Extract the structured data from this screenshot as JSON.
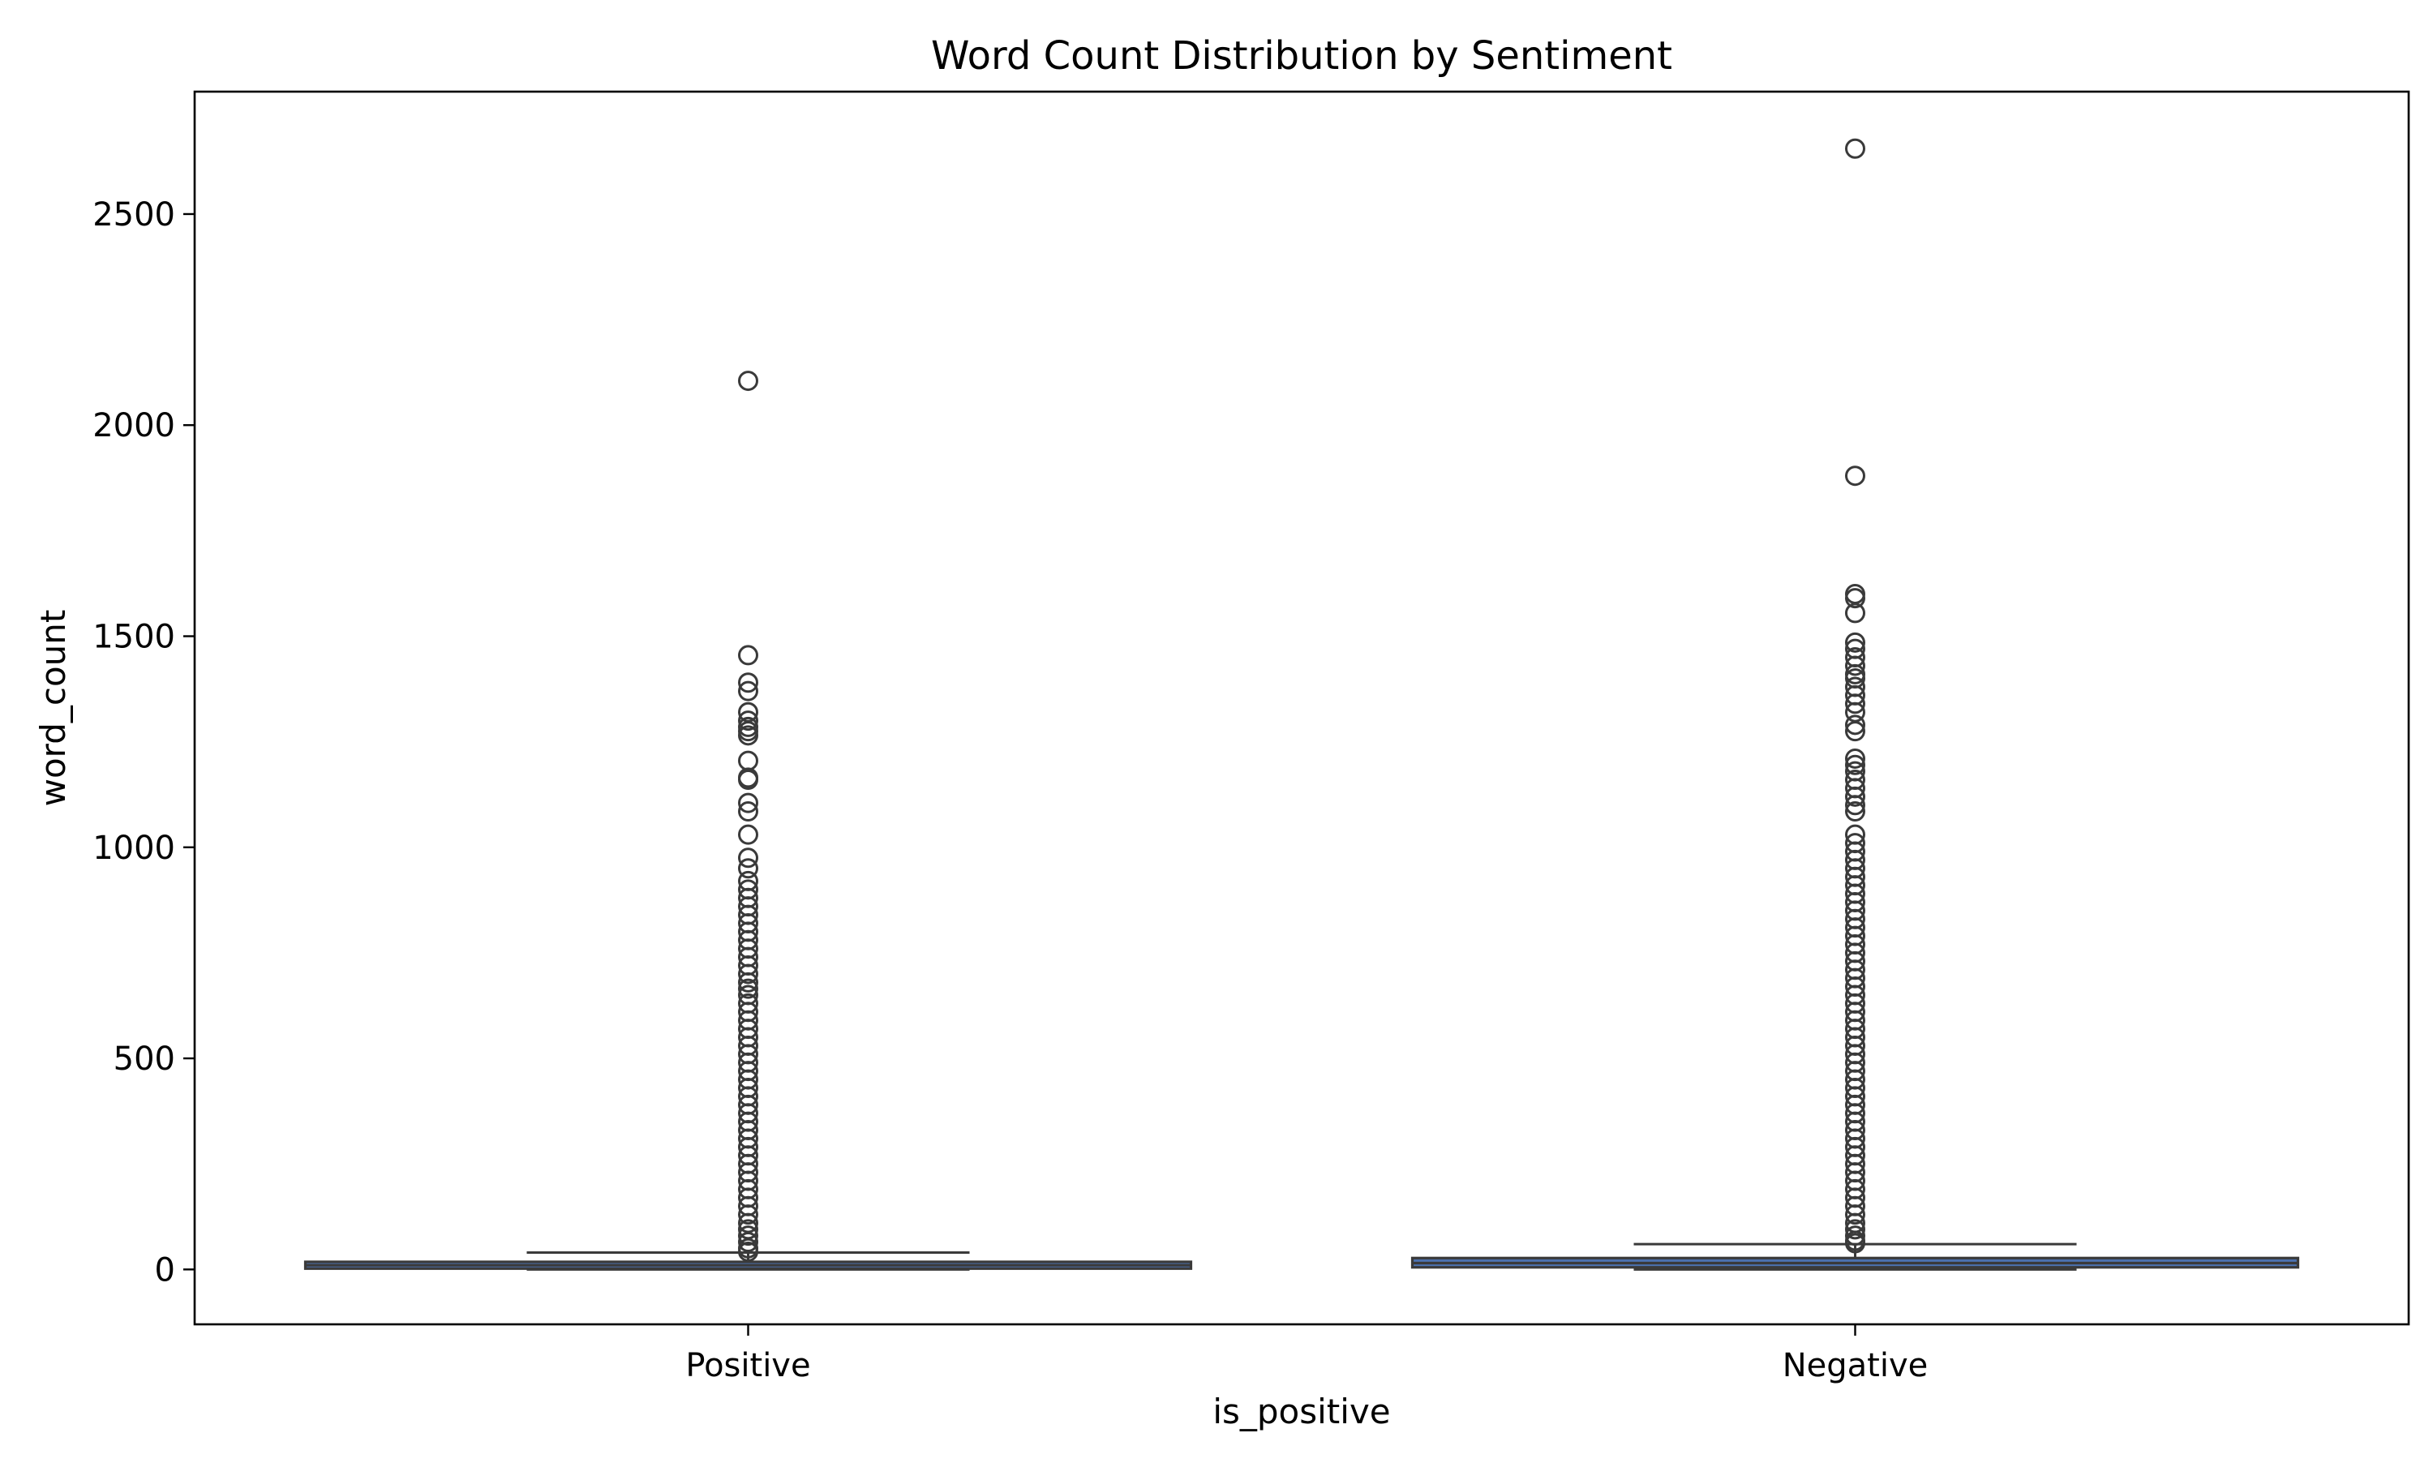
{
  "chart_data": {
    "type": "box",
    "title": "Word Count Distribution by Sentiment",
    "xlabel": "is_positive",
    "ylabel": "word_count",
    "ylim": [
      -130,
      2790
    ],
    "yticks": [
      0,
      500,
      1000,
      1500,
      2000,
      2500
    ],
    "categories": [
      "Positive",
      "Negative"
    ],
    "grid": false,
    "colors": {
      "Positive": "#4c72b0",
      "Negative": "#4c72b0",
      "line": "#3a3a3a"
    },
    "series": [
      {
        "category": "Positive",
        "whislo": 0,
        "q1": 2,
        "median": 10,
        "q3": 18,
        "whishi": 40,
        "fliers": [
          2105,
          1455,
          1390,
          1370,
          1320,
          1300,
          1285,
          1275,
          1265,
          1205,
          1165,
          1160,
          1105,
          1085,
          1030,
          975,
          950,
          920,
          900,
          880,
          860,
          840,
          820,
          800,
          780,
          760,
          740,
          720,
          700,
          680,
          665,
          650,
          630,
          610,
          590,
          570,
          550,
          530,
          510,
          490,
          470,
          450,
          430,
          410,
          390,
          370,
          350,
          330,
          310,
          290,
          270,
          250,
          230,
          210,
          190,
          170,
          150,
          130,
          110,
          95,
          80,
          65,
          50,
          42
        ]
      },
      {
        "category": "Negative",
        "whislo": 0,
        "q1": 5,
        "median": 15,
        "q3": 27,
        "whishi": 60,
        "fliers": [
          2655,
          1880,
          1600,
          1590,
          1555,
          1485,
          1470,
          1450,
          1430,
          1410,
          1400,
          1380,
          1360,
          1340,
          1320,
          1290,
          1275,
          1210,
          1195,
          1180,
          1160,
          1140,
          1120,
          1100,
          1085,
          1030,
          1010,
          990,
          970,
          950,
          930,
          910,
          890,
          870,
          850,
          830,
          810,
          790,
          770,
          750,
          730,
          710,
          690,
          670,
          650,
          630,
          610,
          590,
          570,
          550,
          530,
          510,
          490,
          470,
          450,
          430,
          410,
          390,
          370,
          350,
          330,
          310,
          290,
          270,
          250,
          230,
          210,
          190,
          170,
          150,
          130,
          110,
          95,
          80,
          68,
          62
        ]
      }
    ]
  }
}
